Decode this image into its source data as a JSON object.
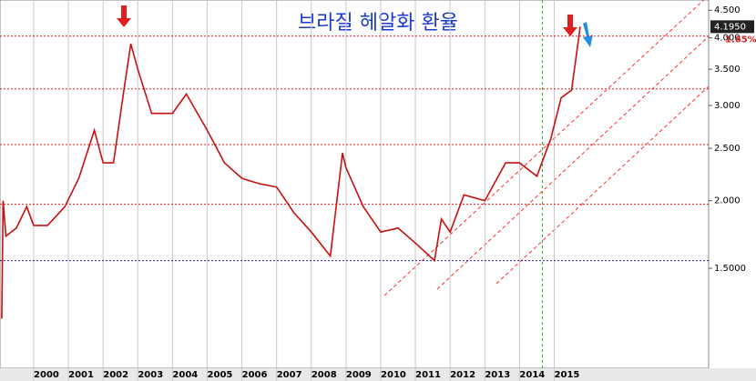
{
  "chart_data": {
    "type": "line",
    "title": "브라질 헤알화 환율",
    "x": [
      1999.08,
      1999.12,
      1999.2,
      1999.5,
      1999.8,
      2000.0,
      2000.4,
      2000.9,
      2001.3,
      2001.75,
      2002.0,
      2002.3,
      2002.6,
      2002.8,
      2003.0,
      2003.4,
      2004.0,
      2004.4,
      2005.0,
      2005.5,
      2006.0,
      2006.5,
      2007.0,
      2007.5,
      2008.0,
      2008.55,
      2008.9,
      2009.0,
      2009.5,
      2010.0,
      2010.5,
      2011.0,
      2011.55,
      2011.75,
      2012.0,
      2012.4,
      2013.0,
      2013.6,
      2014.0,
      2014.5,
      2014.9,
      2015.2,
      2015.5,
      2015.75
    ],
    "values": [
      1.21,
      2.0,
      1.72,
      1.78,
      1.95,
      1.8,
      1.8,
      1.95,
      2.2,
      2.7,
      2.35,
      2.35,
      3.2,
      3.9,
      3.5,
      2.9,
      2.9,
      3.15,
      2.7,
      2.35,
      2.2,
      2.15,
      2.12,
      1.9,
      1.75,
      1.58,
      2.45,
      2.3,
      1.95,
      1.75,
      1.78,
      1.67,
      1.55,
      1.85,
      1.75,
      2.05,
      2.0,
      2.35,
      2.35,
      2.22,
      2.6,
      3.1,
      3.2,
      4.195
    ],
    "color": "#c81010",
    "xlim": [
      1999.03,
      2019.45
    ],
    "xticks": [
      2000,
      2001,
      2002,
      2003,
      2004,
      2005,
      2006,
      2007,
      2008,
      2009,
      2010,
      2011,
      2012,
      2013,
      2014,
      2015
    ],
    "ylim": [
      0.98,
      4.7
    ],
    "log_scale": true,
    "yticks": [
      {
        "value": 1.5,
        "label": "1.5000"
      },
      {
        "value": 2,
        "label": "2.000"
      },
      {
        "value": 2.5,
        "label": "2.500"
      },
      {
        "value": 3,
        "label": "3.000"
      },
      {
        "value": 3.5,
        "label": "3.500"
      },
      {
        "value": 4,
        "label": "4.000"
      },
      {
        "value": 4.5,
        "label": "4.500"
      }
    ],
    "grid": true,
    "last_price_label": "4.1950",
    "change_label": "1.65%",
    "hlines": [
      {
        "value": 4.03,
        "color": "#e02020"
      },
      {
        "value": 3.22,
        "color": "#e02020"
      },
      {
        "value": 2.54,
        "color": "#e02020"
      },
      {
        "value": 1.97,
        "color": "#e02020"
      },
      {
        "value": 1.55,
        "color": "#2020a0"
      }
    ],
    "vline": {
      "value": 2014.66,
      "color": "#20b020"
    }
  }
}
